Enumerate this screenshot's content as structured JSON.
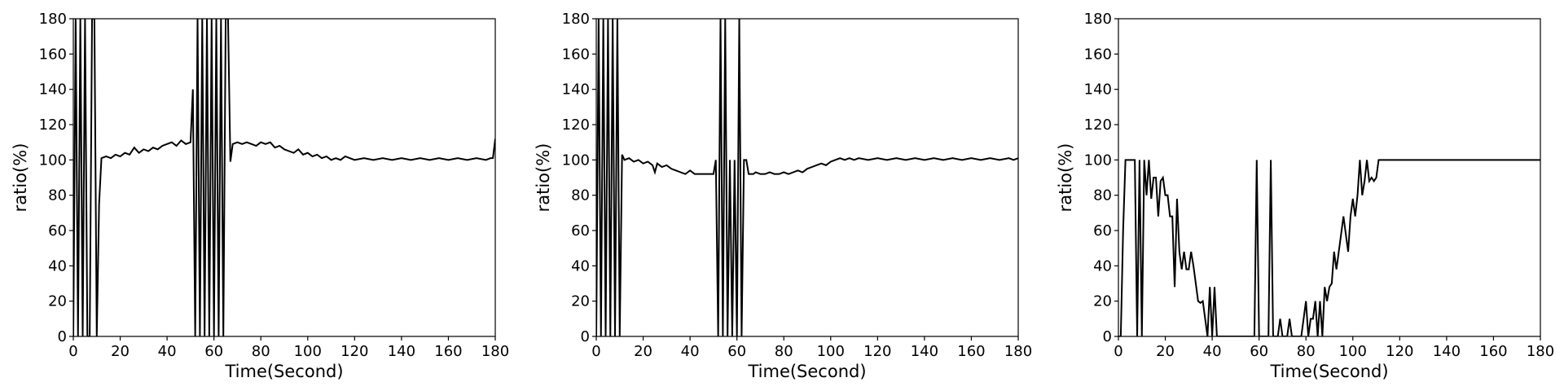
{
  "chart_data": [
    {
      "type": "line",
      "xlabel": "Time(Second)",
      "ylabel": "ratio(%)",
      "xlim": [
        0,
        180
      ],
      "ylim": [
        0,
        180
      ],
      "xticks": [
        0,
        20,
        40,
        60,
        80,
        100,
        120,
        140,
        160,
        180
      ],
      "yticks": [
        0,
        20,
        40,
        60,
        80,
        100,
        120,
        140,
        160,
        180
      ],
      "grid": false,
      "line_color": "#000000",
      "series": [
        {
          "x": [
            0,
            1,
            2,
            3,
            4,
            5,
            6,
            7,
            8,
            9,
            10,
            11,
            12,
            14,
            16,
            18,
            20,
            22,
            24,
            26,
            28,
            30,
            32,
            34,
            36,
            38,
            40,
            42,
            44,
            46,
            48,
            50,
            51,
            52,
            53,
            54,
            55,
            56,
            57,
            58,
            59,
            60,
            61,
            62,
            63,
            64,
            65,
            66,
            67,
            68,
            70,
            72,
            74,
            76,
            78,
            80,
            82,
            84,
            86,
            88,
            90,
            92,
            94,
            96,
            98,
            100,
            102,
            104,
            106,
            108,
            110,
            112,
            114,
            116,
            118,
            120,
            124,
            128,
            132,
            136,
            140,
            144,
            148,
            152,
            156,
            160,
            164,
            168,
            172,
            176,
            178,
            179,
            180
          ],
          "y": [
            0,
            180,
            0,
            180,
            0,
            180,
            0,
            0,
            180,
            180,
            0,
            75,
            101,
            102,
            101,
            103,
            102,
            104,
            103,
            107,
            104,
            106,
            105,
            107,
            106,
            108,
            109,
            110,
            108,
            111,
            109,
            110,
            140,
            0,
            180,
            0,
            180,
            0,
            180,
            0,
            180,
            0,
            180,
            0,
            180,
            0,
            180,
            180,
            99,
            109,
            110,
            109,
            110,
            109,
            108,
            110,
            109,
            110,
            107,
            108,
            106,
            105,
            104,
            106,
            103,
            104,
            102,
            103,
            101,
            102,
            100,
            101,
            100,
            102,
            101,
            100,
            101,
            100,
            101,
            100,
            101,
            100,
            101,
            100,
            101,
            100,
            101,
            100,
            101,
            100,
            101,
            101,
            112
          ]
        }
      ]
    },
    {
      "type": "line",
      "xlabel": "Time(Second)",
      "ylabel": "ratio(%)",
      "xlim": [
        0,
        180
      ],
      "ylim": [
        0,
        180
      ],
      "xticks": [
        0,
        20,
        40,
        60,
        80,
        100,
        120,
        140,
        160,
        180
      ],
      "yticks": [
        0,
        20,
        40,
        60,
        80,
        100,
        120,
        140,
        160,
        180
      ],
      "grid": false,
      "line_color": "#000000",
      "series": [
        {
          "x": [
            0,
            1,
            2,
            3,
            4,
            5,
            6,
            7,
            8,
            9,
            10,
            11,
            12,
            14,
            16,
            18,
            20,
            22,
            24,
            25,
            26,
            28,
            30,
            32,
            34,
            36,
            38,
            40,
            42,
            44,
            46,
            48,
            50,
            51,
            52,
            53,
            54,
            55,
            56,
            57,
            58,
            59,
            60,
            61,
            62,
            63,
            64,
            65,
            66,
            67,
            68,
            70,
            72,
            74,
            76,
            78,
            80,
            82,
            84,
            86,
            88,
            90,
            92,
            94,
            96,
            98,
            100,
            102,
            104,
            106,
            108,
            110,
            112,
            116,
            120,
            124,
            128,
            132,
            136,
            140,
            144,
            148,
            152,
            156,
            160,
            164,
            168,
            172,
            176,
            178,
            180
          ],
          "y": [
            0,
            180,
            0,
            180,
            0,
            180,
            0,
            180,
            0,
            180,
            0,
            103,
            100,
            101,
            99,
            100,
            98,
            99,
            97,
            93,
            98,
            96,
            97,
            95,
            94,
            93,
            92,
            94,
            92,
            92,
            92,
            92,
            92,
            100,
            0,
            180,
            0,
            180,
            0,
            100,
            0,
            100,
            0,
            180,
            0,
            100,
            100,
            92,
            92,
            92,
            93,
            92,
            92,
            93,
            92,
            92,
            93,
            92,
            93,
            94,
            93,
            95,
            96,
            97,
            98,
            97,
            99,
            100,
            101,
            100,
            101,
            100,
            101,
            100,
            101,
            100,
            101,
            100,
            101,
            100,
            101,
            100,
            101,
            100,
            101,
            100,
            101,
            100,
            101,
            100,
            101
          ]
        }
      ]
    },
    {
      "type": "line",
      "xlabel": "Time(Second)",
      "ylabel": "ratio(%)",
      "xlim": [
        0,
        180
      ],
      "ylim": [
        0,
        180
      ],
      "xticks": [
        0,
        20,
        40,
        60,
        80,
        100,
        120,
        140,
        160,
        180
      ],
      "yticks": [
        0,
        20,
        40,
        60,
        80,
        100,
        120,
        140,
        160,
        180
      ],
      "grid": false,
      "line_color": "#000000",
      "series": [
        {
          "x": [
            0,
            1,
            2,
            3,
            5,
            7,
            8,
            9,
            10,
            11,
            12,
            13,
            14,
            15,
            16,
            17,
            18,
            19,
            20,
            21,
            22,
            23,
            24,
            25,
            26,
            27,
            28,
            29,
            30,
            31,
            32,
            33,
            34,
            35,
            36,
            37,
            38,
            39,
            40,
            41,
            42,
            43,
            44,
            46,
            48,
            50,
            52,
            54,
            56,
            58,
            59,
            60,
            61,
            62,
            64,
            65,
            66,
            67,
            68,
            69,
            70,
            71,
            72,
            73,
            74,
            75,
            76,
            77,
            78,
            79,
            80,
            81,
            82,
            83,
            84,
            85,
            86,
            87,
            88,
            89,
            90,
            91,
            92,
            93,
            94,
            95,
            96,
            97,
            98,
            99,
            100,
            101,
            102,
            103,
            104,
            105,
            106,
            107,
            108,
            109,
            110,
            111,
            112,
            113,
            114,
            116,
            118,
            120,
            125,
            130,
            132,
            140,
            150,
            152,
            160,
            170,
            180
          ],
          "y": [
            0,
            0,
            60,
            100,
            100,
            100,
            0,
            100,
            0,
            100,
            80,
            100,
            78,
            90,
            90,
            68,
            88,
            90,
            80,
            80,
            68,
            68,
            28,
            78,
            48,
            38,
            48,
            38,
            38,
            48,
            40,
            30,
            20,
            19,
            20,
            10,
            0,
            28,
            0,
            28,
            0,
            0,
            0,
            0,
            0,
            0,
            0,
            0,
            0,
            0,
            100,
            0,
            0,
            0,
            0,
            100,
            0,
            0,
            0,
            10,
            0,
            0,
            0,
            10,
            0,
            0,
            0,
            0,
            0,
            10,
            20,
            0,
            10,
            10,
            20,
            0,
            20,
            0,
            28,
            20,
            28,
            30,
            48,
            38,
            48,
            58,
            68,
            58,
            48,
            68,
            78,
            68,
            80,
            100,
            80,
            88,
            100,
            88,
            90,
            88,
            90,
            100,
            100,
            100,
            100,
            100,
            100,
            100,
            100,
            100,
            100,
            100,
            100,
            100,
            100,
            100,
            100
          ]
        }
      ]
    }
  ]
}
